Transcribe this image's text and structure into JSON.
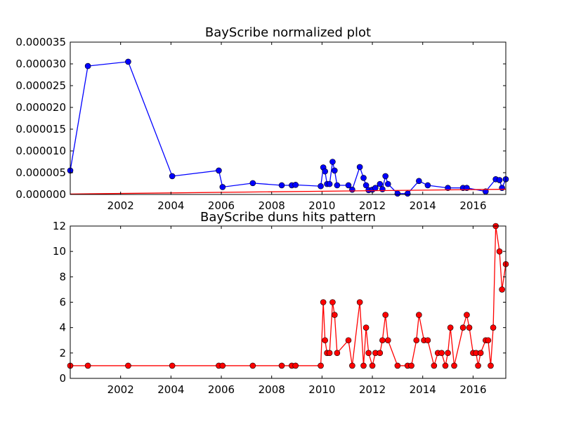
{
  "figure": {
    "marker_outline": "#000000",
    "charts": [
      {
        "type": "line",
        "title": "BayScribe normalized plot",
        "xlim": [
          2000.0,
          2017.3
        ],
        "ylim": [
          0,
          3.5e-05
        ],
        "xticks": [
          2002,
          2004,
          2006,
          2008,
          2010,
          2012,
          2014,
          2016
        ],
        "yticks": [
          0.0,
          5e-06,
          1e-05,
          1.5e-05,
          2e-05,
          2.5e-05,
          3e-05,
          3.5e-05
        ],
        "ytick_labels": [
          "0.000000",
          "0.000005",
          "0.000010",
          "0.000015",
          "0.000020",
          "0.000025",
          "0.000030",
          "0.000035"
        ],
        "grid": false,
        "series": [
          {
            "color": "#0000ff",
            "marker": "circle",
            "x": [
              2000.0,
              2000.7,
              2002.3,
              2004.05,
              2005.9,
              2006.05,
              2007.25,
              2008.4,
              2008.8,
              2008.95,
              2009.95,
              2010.05,
              2010.12,
              2010.2,
              2010.3,
              2010.42,
              2010.5,
              2010.6,
              2011.05,
              2011.2,
              2011.5,
              2011.65,
              2011.75,
              2011.85,
              2012.0,
              2012.12,
              2012.3,
              2012.4,
              2012.52,
              2012.62,
              2013.0,
              2013.4,
              2013.85,
              2014.2,
              2015.0,
              2015.6,
              2015.75,
              2016.5,
              2016.9,
              2017.05,
              2017.15,
              2017.3
            ],
            "y": [
              5.5e-06,
              2.95e-05,
              3.05e-05,
              4.2e-06,
              5.5e-06,
              1.7e-06,
              2.6e-06,
              2.1e-06,
              2.1e-06,
              2.2e-06,
              1.9e-06,
              6.2e-06,
              5.3e-06,
              2.4e-06,
              2.4e-06,
              7.5e-06,
              5.5e-06,
              2.1e-06,
              2.1e-06,
              1.1e-06,
              6.3e-06,
              3.8e-06,
              2.1e-06,
              1e-06,
              1.1e-06,
              1.5e-06,
              2.4e-06,
              1.2e-06,
              4.2e-06,
              2.4e-06,
              2e-07,
              2e-07,
              3.1e-06,
              2.1e-06,
              1.5e-06,
              1.5e-06,
              1.5e-06,
              7e-07,
              3.5e-06,
              3.3e-06,
              1.5e-06,
              3.5e-06
            ]
          },
          {
            "color": "#ff0000",
            "marker": "none",
            "x": [
              2000.0,
              2017.3
            ],
            "y": [
              1e-07,
              1.2e-06
            ]
          }
        ]
      },
      {
        "type": "line",
        "title": "BayScribe duns hits pattern",
        "xlim": [
          2000.0,
          2017.3
        ],
        "ylim": [
          0,
          12
        ],
        "xticks": [
          2002,
          2004,
          2006,
          2008,
          2010,
          2012,
          2014,
          2016
        ],
        "yticks": [
          0,
          2,
          4,
          6,
          8,
          10,
          12
        ],
        "ytick_labels": [
          "0",
          "2",
          "4",
          "6",
          "8",
          "10",
          "12"
        ],
        "grid": false,
        "series": [
          {
            "color": "#ff0000",
            "marker": "circle",
            "x": [
              2000.0,
              2000.7,
              2002.3,
              2004.05,
              2005.9,
              2006.05,
              2007.25,
              2008.4,
              2008.8,
              2008.95,
              2009.95,
              2010.05,
              2010.12,
              2010.2,
              2010.3,
              2010.42,
              2010.5,
              2010.6,
              2011.05,
              2011.2,
              2011.5,
              2011.65,
              2011.75,
              2011.85,
              2012.0,
              2012.12,
              2012.3,
              2012.4,
              2012.52,
              2012.62,
              2013.0,
              2013.4,
              2013.55,
              2013.75,
              2013.85,
              2014.05,
              2014.2,
              2014.45,
              2014.6,
              2014.75,
              2014.9,
              2015.0,
              2015.1,
              2015.25,
              2015.6,
              2015.75,
              2015.85,
              2016.0,
              2016.12,
              2016.2,
              2016.3,
              2016.5,
              2016.6,
              2016.7,
              2016.8,
              2016.9,
              2017.05,
              2017.15,
              2017.3
            ],
            "y": [
              1,
              1,
              1,
              1,
              1,
              1,
              1,
              1,
              1,
              1,
              1,
              6,
              3,
              2,
              2,
              6,
              5,
              2,
              3,
              1,
              6,
              1,
              4,
              2,
              1,
              2,
              2,
              3,
              5,
              3,
              1,
              1,
              1,
              3,
              5,
              3,
              3,
              1,
              2,
              2,
              1,
              2,
              4,
              1,
              4,
              5,
              4,
              2,
              2,
              1,
              2,
              3,
              3,
              1,
              4,
              12,
              10,
              7,
              9
            ]
          }
        ]
      }
    ]
  },
  "chart_data": [
    {
      "type": "line",
      "title": "BayScribe normalized plot",
      "xlim": [
        2000.0,
        2017.3
      ],
      "ylim": [
        0,
        3.5e-05
      ],
      "series": [
        {
          "color": "#0000ff",
          "x": [
            2000.0,
            2000.7,
            2002.3,
            2004.05,
            2005.9,
            2006.05,
            2007.25,
            2008.4,
            2008.8,
            2008.95,
            2009.95,
            2010.05,
            2010.12,
            2010.2,
            2010.3,
            2010.42,
            2010.5,
            2010.6,
            2011.05,
            2011.2,
            2011.5,
            2011.65,
            2011.75,
            2011.85,
            2012.0,
            2012.12,
            2012.3,
            2012.4,
            2012.52,
            2012.62,
            2013.0,
            2013.4,
            2013.85,
            2014.2,
            2015.0,
            2015.6,
            2015.75,
            2016.5,
            2016.9,
            2017.05,
            2017.15,
            2017.3
          ],
          "y": [
            5.5e-06,
            2.95e-05,
            3.05e-05,
            4.2e-06,
            5.5e-06,
            1.7e-06,
            2.6e-06,
            2.1e-06,
            2.1e-06,
            2.2e-06,
            1.9e-06,
            6.2e-06,
            5.3e-06,
            2.4e-06,
            2.4e-06,
            7.5e-06,
            5.5e-06,
            2.1e-06,
            2.1e-06,
            1.1e-06,
            6.3e-06,
            3.8e-06,
            2.1e-06,
            1e-06,
            1.1e-06,
            1.5e-06,
            2.4e-06,
            1.2e-06,
            4.2e-06,
            2.4e-06,
            2e-07,
            2e-07,
            3.1e-06,
            2.1e-06,
            1.5e-06,
            1.5e-06,
            1.5e-06,
            7e-07,
            3.5e-06,
            3.3e-06,
            1.5e-06,
            3.5e-06
          ]
        },
        {
          "color": "#ff0000",
          "x": [
            2000.0,
            2017.3
          ],
          "y": [
            1e-07,
            1.2e-06
          ]
        }
      ]
    },
    {
      "type": "line",
      "title": "BayScribe duns hits pattern",
      "xlim": [
        2000.0,
        2017.3
      ],
      "ylim": [
        0,
        12
      ],
      "series": [
        {
          "color": "#ff0000",
          "x": [
            2000.0,
            2000.7,
            2002.3,
            2004.05,
            2005.9,
            2006.05,
            2007.25,
            2008.4,
            2008.8,
            2008.95,
            2009.95,
            2010.05,
            2010.12,
            2010.2,
            2010.3,
            2010.42,
            2010.5,
            2010.6,
            2011.05,
            2011.2,
            2011.5,
            2011.65,
            2011.75,
            2011.85,
            2012.0,
            2012.12,
            2012.3,
            2012.4,
            2012.52,
            2012.62,
            2013.0,
            2013.4,
            2013.55,
            2013.75,
            2013.85,
            2014.05,
            2014.2,
            2014.45,
            2014.6,
            2014.75,
            2014.9,
            2015.0,
            2015.1,
            2015.25,
            2015.6,
            2015.75,
            2015.85,
            2016.0,
            2016.12,
            2016.2,
            2016.3,
            2016.5,
            2016.6,
            2016.7,
            2016.8,
            2016.9,
            2017.05,
            2017.15,
            2017.3
          ],
          "y": [
            1,
            1,
            1,
            1,
            1,
            1,
            1,
            1,
            1,
            1,
            1,
            6,
            3,
            2,
            2,
            6,
            5,
            2,
            3,
            1,
            6,
            1,
            4,
            2,
            1,
            2,
            2,
            3,
            5,
            3,
            1,
            1,
            1,
            3,
            5,
            3,
            3,
            1,
            2,
            2,
            1,
            2,
            4,
            1,
            4,
            5,
            4,
            2,
            2,
            1,
            2,
            3,
            3,
            1,
            4,
            12,
            10,
            7,
            9
          ]
        }
      ]
    }
  ]
}
